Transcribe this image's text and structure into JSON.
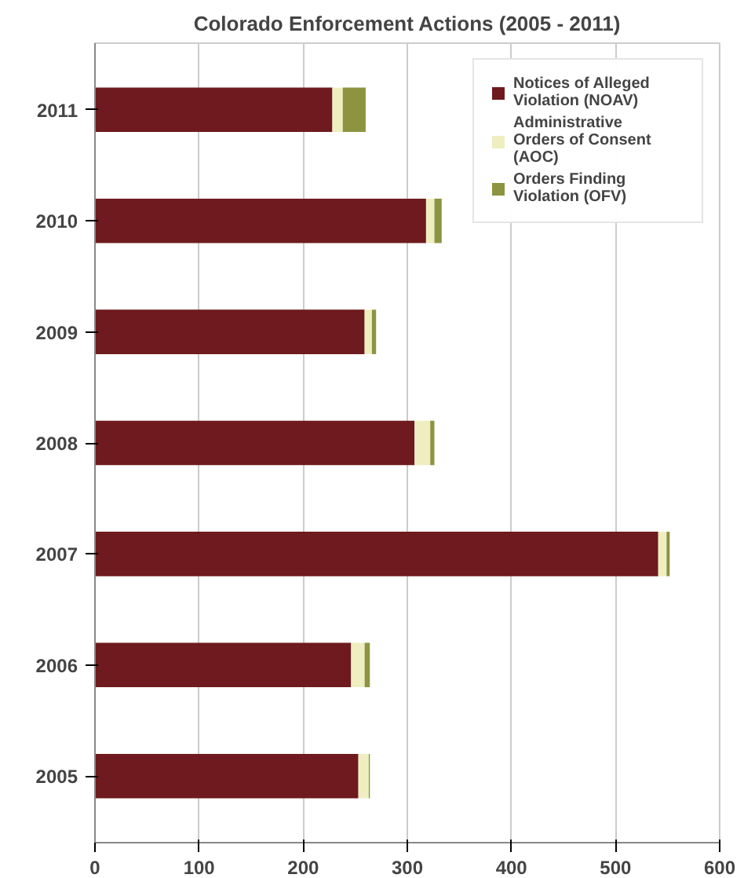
{
  "chart_data": {
    "type": "bar",
    "orientation": "horizontal",
    "stacked": true,
    "title": "Colorado Enforcement Actions (2005 - 2011)",
    "categories": [
      "2011",
      "2010",
      "2009",
      "2008",
      "2007",
      "2006",
      "2005"
    ],
    "series": [
      {
        "name": "Notices of Alleged Violation (NOAV)",
        "color": "#6e1a1e",
        "values": [
          228,
          318,
          259,
          307,
          541,
          246,
          253
        ]
      },
      {
        "name": "Administrative Orders of Consent (AOC)",
        "color": "#eeeec0",
        "values": [
          10,
          8,
          7,
          15,
          8,
          13,
          10
        ]
      },
      {
        "name": "Orders Finding Violation (OFV)",
        "color": "#8c9440",
        "values": [
          22,
          7,
          4,
          4,
          3,
          5,
          1
        ]
      }
    ],
    "xlim": [
      0,
      600
    ],
    "xticks": [
      0,
      100,
      200,
      300,
      400,
      500,
      600
    ],
    "grid": "x",
    "legend": "top right"
  }
}
